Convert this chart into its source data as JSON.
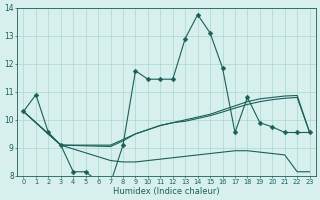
{
  "xlabel": "Humidex (Indice chaleur)",
  "xlim": [
    -0.5,
    23.5
  ],
  "ylim": [
    8,
    14
  ],
  "yticks": [
    8,
    9,
    10,
    11,
    12,
    13,
    14
  ],
  "xticks": [
    0,
    1,
    2,
    3,
    4,
    5,
    6,
    7,
    8,
    9,
    10,
    11,
    12,
    13,
    14,
    15,
    16,
    17,
    18,
    19,
    20,
    21,
    22,
    23
  ],
  "bg_color": "#d8f0ed",
  "line_color": "#1a5f5a",
  "grid_color": "#aad8d3",
  "line1_x": [
    0,
    1,
    2,
    3,
    4,
    5,
    6,
    7,
    8,
    9,
    10,
    11,
    12,
    13,
    14,
    15,
    16,
    17,
    18,
    19,
    20,
    21,
    22,
    23
  ],
  "line1_y": [
    10.3,
    10.9,
    9.55,
    9.1,
    8.15,
    8.15,
    7.8,
    7.75,
    9.1,
    11.75,
    11.45,
    11.45,
    11.45,
    12.9,
    13.75,
    13.1,
    11.85,
    9.55,
    10.8,
    9.9,
    9.75,
    9.55,
    9.55,
    9.55
  ],
  "line1_marker": "D",
  "line1_markersize": 2.5,
  "line2_x": [
    0,
    3,
    7,
    8,
    9,
    10,
    11,
    12,
    13,
    14,
    15,
    16,
    17,
    18,
    19,
    20,
    21,
    22,
    23
  ],
  "line2_y": [
    10.3,
    9.1,
    9.1,
    9.3,
    9.5,
    9.65,
    9.8,
    9.9,
    10.0,
    10.1,
    10.2,
    10.35,
    10.5,
    10.65,
    10.75,
    10.8,
    10.85,
    10.87,
    9.55
  ],
  "line3_x": [
    0,
    3,
    7,
    8,
    9,
    10,
    11,
    12,
    13,
    14,
    15,
    16,
    17,
    18,
    19,
    20,
    21,
    22,
    23
  ],
  "line3_y": [
    10.3,
    9.1,
    8.55,
    8.5,
    8.5,
    8.55,
    8.6,
    8.65,
    8.7,
    8.75,
    8.8,
    8.85,
    8.9,
    8.9,
    8.85,
    8.8,
    8.75,
    8.15,
    8.15
  ],
  "line4_x": [
    0,
    3,
    7,
    8,
    9,
    10,
    11,
    12,
    13,
    14,
    15,
    16,
    17,
    18,
    19,
    20,
    21,
    22,
    23
  ],
  "line4_y": [
    10.3,
    9.1,
    9.05,
    9.25,
    9.5,
    9.65,
    9.8,
    9.9,
    9.95,
    10.05,
    10.15,
    10.28,
    10.42,
    10.55,
    10.65,
    10.72,
    10.77,
    10.8,
    9.55
  ]
}
